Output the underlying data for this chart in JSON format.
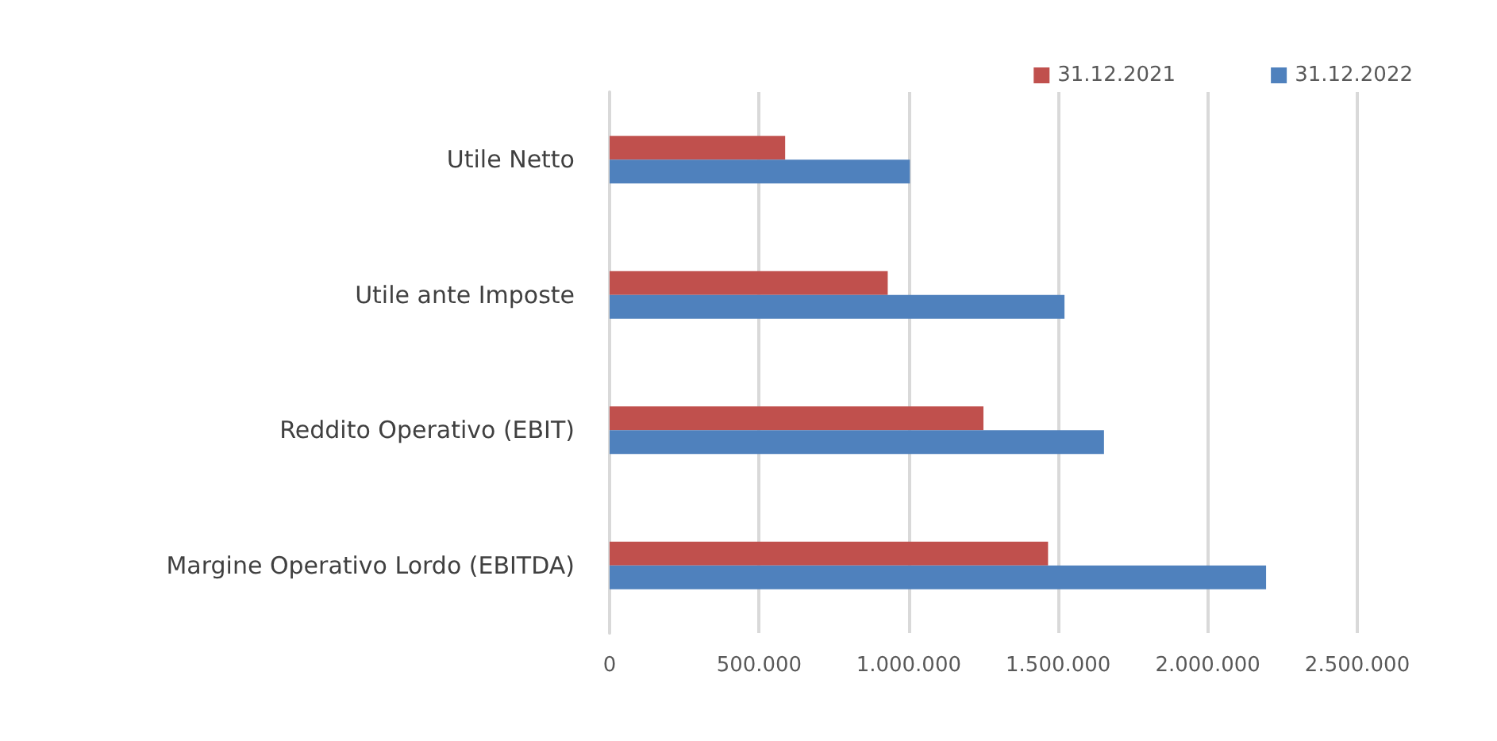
{
  "chart_data": {
    "type": "bar",
    "orientation": "horizontal",
    "categories": [
      "Utile Netto",
      "Utile ante Imposte",
      "Reddito Operativo (EBIT)",
      "Margine Operativo Lordo (EBITDA)"
    ],
    "series": [
      {
        "name": "31.12.2021",
        "color": "#c0504d",
        "values": [
          587000,
          930000,
          1250000,
          1466000
        ]
      },
      {
        "name": "31.12.2022",
        "color": "#4f81bd",
        "values": [
          1004000,
          1521000,
          1653000,
          2195000
        ]
      }
    ],
    "xlim": [
      0,
      2500000
    ],
    "xticks": [
      {
        "value": 0,
        "label": "0"
      },
      {
        "value": 500000,
        "label": "500.000"
      },
      {
        "value": 1000000,
        "label": "1.000.000"
      },
      {
        "value": 1500000,
        "label": "1.500.000"
      },
      {
        "value": 2000000,
        "label": "2.000.000"
      },
      {
        "value": 2500000,
        "label": "2.500.000"
      }
    ],
    "grid": "x",
    "legend": "top right"
  }
}
